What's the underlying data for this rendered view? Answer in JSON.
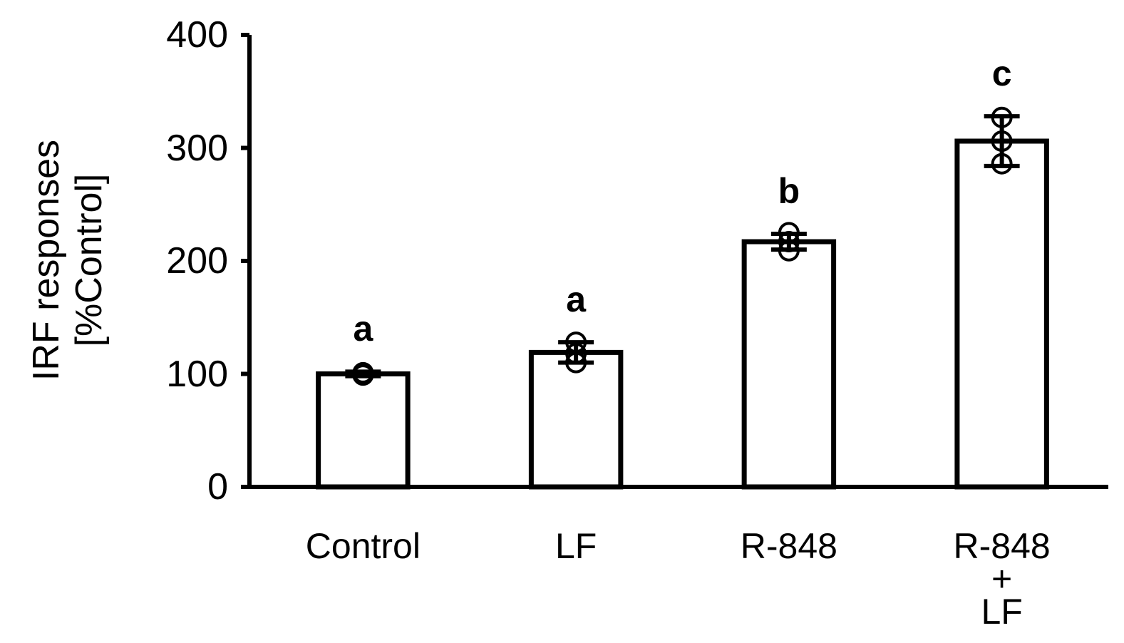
{
  "chart_data": {
    "type": "bar",
    "y_label": "IRF responses\n[%Control]",
    "categories": [
      "Control",
      "LF",
      "R-848",
      "R-848\n+\nLF"
    ],
    "values": [
      100,
      119,
      217,
      306
    ],
    "errors": [
      2,
      9,
      7,
      22
    ],
    "points": [
      [
        99,
        100,
        101
      ],
      [
        110,
        118,
        128
      ],
      [
        209,
        217,
        225
      ],
      [
        286,
        306,
        327
      ]
    ],
    "annotations": [
      "a",
      "a",
      "b",
      "c"
    ],
    "color": "#ffffff",
    "edge_color": "#000000",
    "ylim": [
      0,
      400
    ],
    "yticks": [
      0,
      100,
      200,
      300,
      400
    ],
    "grid": false
  }
}
